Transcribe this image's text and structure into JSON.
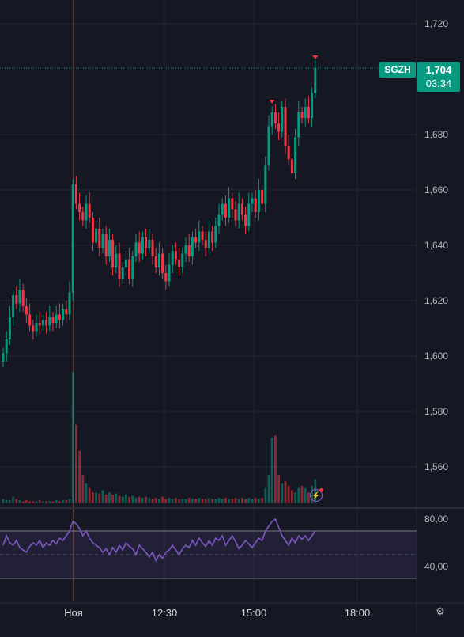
{
  "chart_data": [
    {
      "type": "candlestick",
      "symbol": "SGZH",
      "last_price": "1,704",
      "countdown": "03:34",
      "y_ticks": [
        "1,720",
        "1,680",
        "1,660",
        "1,640",
        "1,620",
        "1,600",
        "1,580",
        "1,560"
      ],
      "ylim": [
        1550,
        1725
      ],
      "x_ticks": [
        "Ноя",
        "12:30",
        "15:00",
        "18:00"
      ],
      "grid": true,
      "close_series": [
        1601,
        1606,
        1614,
        1622,
        1619,
        1624,
        1618,
        1615,
        1611,
        1609,
        1612,
        1611,
        1613,
        1611,
        1614,
        1612,
        1615,
        1613,
        1617,
        1615,
        1623,
        1662,
        1655,
        1652,
        1649,
        1655,
        1650,
        1641,
        1646,
        1639,
        1644,
        1636,
        1642,
        1632,
        1637,
        1628,
        1632,
        1635,
        1628,
        1636,
        1641,
        1637,
        1643,
        1639,
        1642,
        1636,
        1632,
        1637,
        1630,
        1627,
        1633,
        1638,
        1635,
        1632,
        1637,
        1640,
        1636,
        1643,
        1641,
        1645,
        1642,
        1639,
        1645,
        1641,
        1647,
        1651,
        1655,
        1650,
        1657,
        1653,
        1649,
        1655,
        1651,
        1647,
        1655,
        1657,
        1652,
        1660,
        1655,
        1669,
        1683,
        1688,
        1684,
        1681,
        1690,
        1676,
        1671,
        1666,
        1679,
        1688,
        1686,
        1690,
        1686,
        1695,
        1704
      ],
      "colors": {
        "up": "#089981",
        "down": "#f23645",
        "background": "#151823",
        "grid": "#232633"
      }
    },
    {
      "type": "bar",
      "name": "Volume",
      "values": [
        4,
        3,
        3,
        6,
        4,
        3,
        2,
        3,
        2,
        2,
        2,
        3,
        2,
        2,
        2,
        2,
        3,
        2,
        3,
        3,
        4,
        120,
        72,
        48,
        26,
        18,
        14,
        10,
        10,
        9,
        12,
        8,
        10,
        8,
        9,
        7,
        6,
        8,
        6,
        7,
        5,
        6,
        5,
        6,
        5,
        4,
        5,
        4,
        6,
        4,
        5,
        4,
        5,
        4,
        4,
        4,
        5,
        4,
        4,
        5,
        4,
        4,
        5,
        4,
        4,
        5,
        4,
        5,
        4,
        4,
        5,
        4,
        5,
        4,
        5,
        4,
        5,
        4,
        5,
        14,
        26,
        60,
        62,
        26,
        18,
        20,
        16,
        12,
        10,
        14,
        16,
        14,
        10,
        16,
        22
      ]
    },
    {
      "type": "line",
      "name": "RSI",
      "y_ticks": [
        "80,00",
        "40,00"
      ],
      "ylim": [
        25,
        95
      ],
      "upper_band": 70,
      "lower_band": 30,
      "values": [
        58,
        66,
        60,
        58,
        62,
        56,
        54,
        52,
        57,
        60,
        58,
        62,
        56,
        60,
        58,
        62,
        59,
        64,
        62,
        66,
        70,
        78,
        76,
        72,
        66,
        70,
        64,
        60,
        58,
        56,
        52,
        55,
        50,
        56,
        52,
        58,
        54,
        60,
        57,
        55,
        50,
        58,
        55,
        52,
        48,
        52,
        45,
        50,
        47,
        52,
        54,
        58,
        54,
        50,
        55,
        58,
        56,
        62,
        58,
        64,
        60,
        57,
        62,
        58,
        64,
        62,
        66,
        58,
        62,
        66,
        61,
        55,
        58,
        62,
        59,
        56,
        60,
        64,
        62,
        70,
        74,
        78,
        80,
        73,
        66,
        62,
        58,
        64,
        60,
        66,
        63,
        66,
        62,
        66,
        70
      ]
    }
  ]
}
